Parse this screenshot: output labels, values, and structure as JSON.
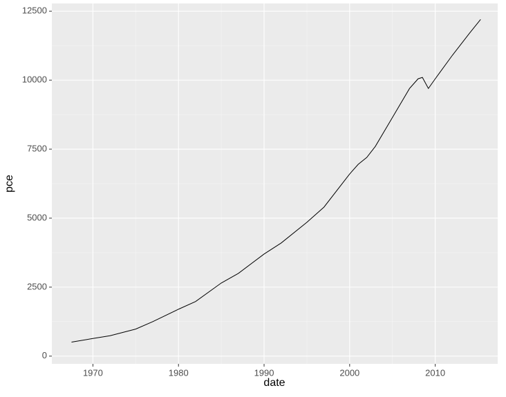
{
  "chart_data": {
    "type": "line",
    "x_label": "date",
    "y_label": "pce",
    "x": [
      1967.5,
      1970,
      1972,
      1975,
      1977,
      1980,
      1982,
      1985,
      1987,
      1990,
      1992,
      1995,
      1997,
      2000,
      2001,
      2002,
      2003,
      2005,
      2007,
      2008,
      2008.5,
      2009.2,
      2010,
      2012,
      2013,
      2014,
      2015.3
    ],
    "series": [
      {
        "color": "#000000",
        "values": [
          507,
          640,
          740,
          980,
          1250,
          1700,
          1980,
          2650,
          3000,
          3700,
          4100,
          4850,
          5400,
          6600,
          6950,
          7200,
          7600,
          8650,
          9700,
          10050,
          10100,
          9700,
          10050,
          10900,
          11300,
          11700,
          12200
        ]
      }
    ],
    "xlim": [
      1965.2,
      2017.3
    ],
    "xticks": [
      1970,
      1980,
      1990,
      2000,
      2010
    ],
    "ylim": [
      -280,
      12780
    ],
    "yticks": [
      0,
      2500,
      5000,
      7500,
      10000,
      12500
    ],
    "grid": true
  }
}
